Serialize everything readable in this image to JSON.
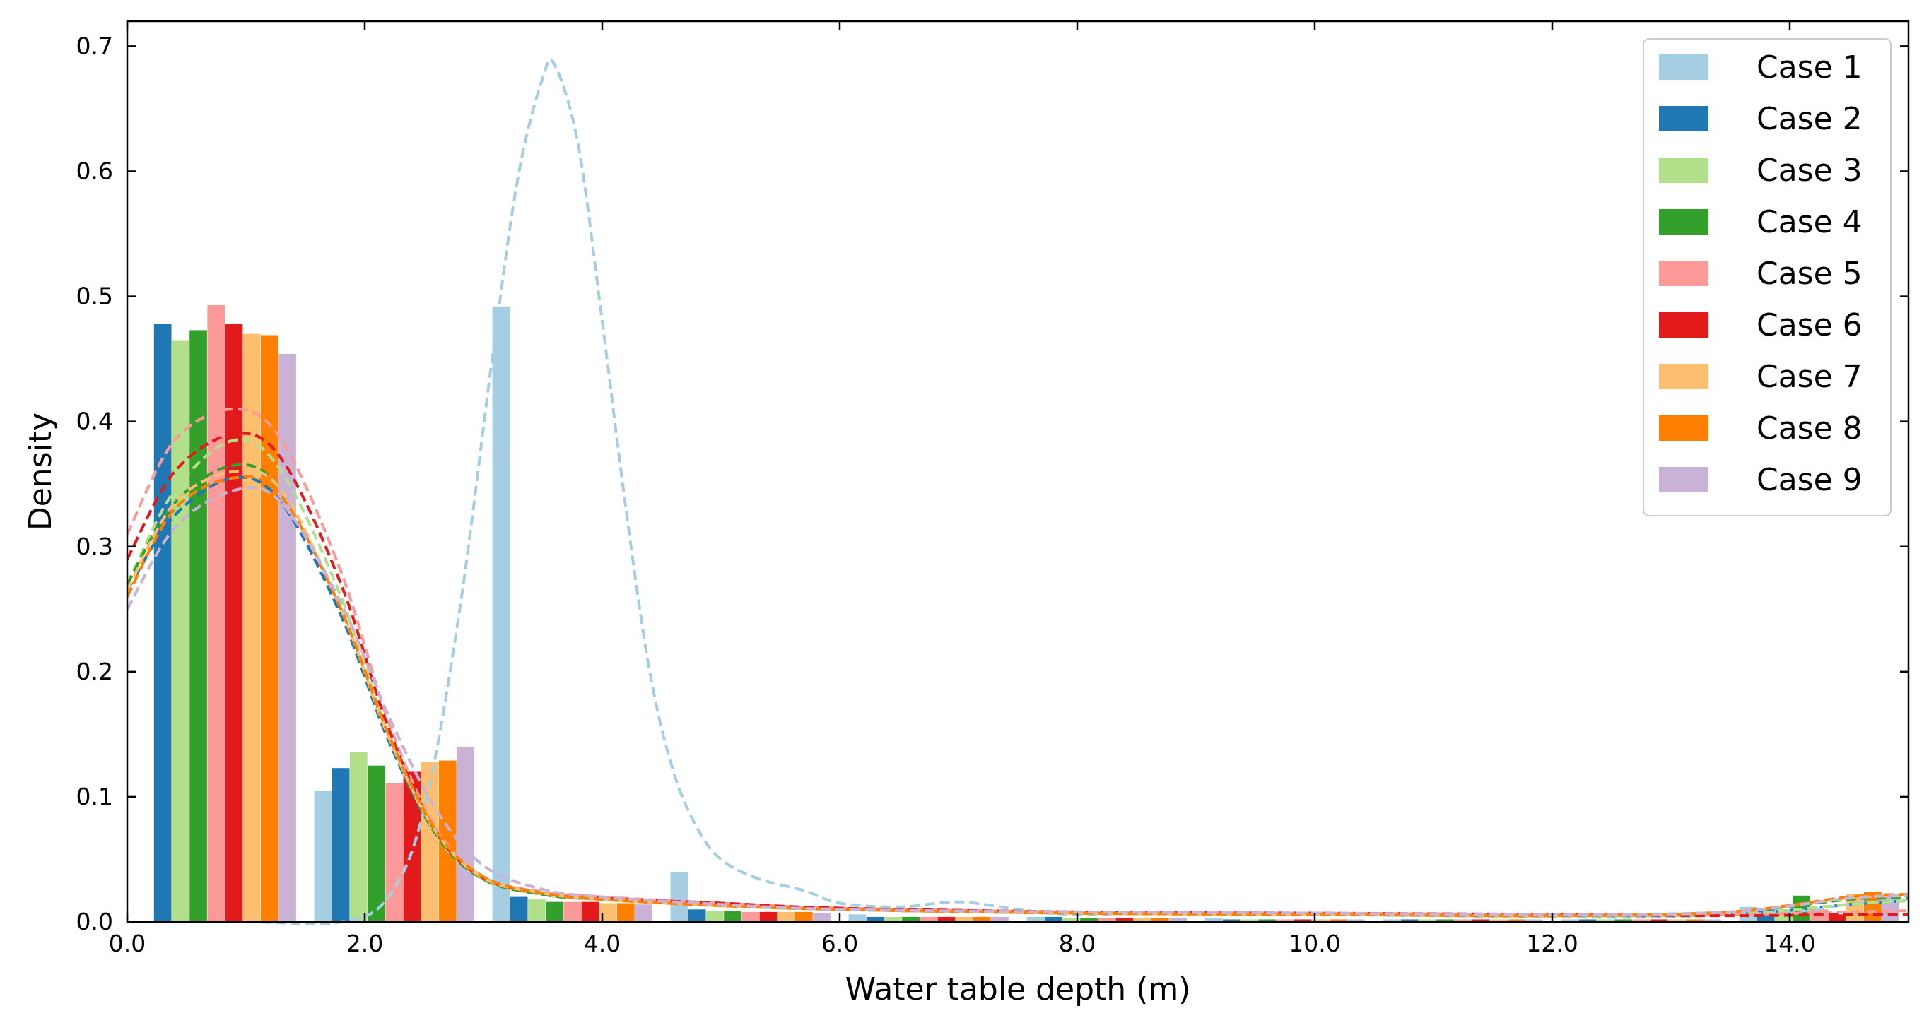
{
  "chart_data": {
    "type": "bar",
    "xlabel": "Water table depth (m)",
    "ylabel": "Density",
    "xlim": [
      0,
      15
    ],
    "ylim": [
      0,
      0.72
    ],
    "xticks": [
      0,
      2,
      4,
      6,
      8,
      10,
      12,
      14
    ],
    "xtick_labels": [
      "0.0",
      "2.0",
      "4.0",
      "6.0",
      "8.0",
      "10.0",
      "12.0",
      "14.0"
    ],
    "yticks": [
      0,
      0.1,
      0.2,
      0.3,
      0.4,
      0.5,
      0.6,
      0.7
    ],
    "ytick_labels": [
      "0.0",
      "0.1",
      "0.2",
      "0.3",
      "0.4",
      "0.5",
      "0.6",
      "0.7"
    ],
    "grid": false,
    "legend_position": "top-right",
    "bin_width": 1.5,
    "bins_start": [
      0,
      1.5,
      3.0,
      4.5,
      6.0,
      7.5,
      9.0,
      10.5,
      12.0,
      13.5
    ],
    "series": [
      {
        "name": "Case 1",
        "color": "#a6cee3",
        "values": [
          0.0,
          0.105,
          0.492,
          0.04,
          0.006,
          0.004,
          0.003,
          0.002,
          0.002,
          0.012
        ],
        "kde": [
          [
            0,
            0.0
          ],
          [
            1,
            0.0
          ],
          [
            1.8,
            0.0
          ],
          [
            2.2,
            0.02
          ],
          [
            2.5,
            0.09
          ],
          [
            2.8,
            0.25
          ],
          [
            3.1,
            0.47
          ],
          [
            3.3,
            0.6
          ],
          [
            3.5,
            0.675
          ],
          [
            3.6,
            0.685
          ],
          [
            3.8,
            0.62
          ],
          [
            4.0,
            0.48
          ],
          [
            4.2,
            0.33
          ],
          [
            4.4,
            0.2
          ],
          [
            4.6,
            0.12
          ],
          [
            4.8,
            0.075
          ],
          [
            5.0,
            0.05
          ],
          [
            5.3,
            0.035
          ],
          [
            5.7,
            0.025
          ],
          [
            6.0,
            0.015
          ],
          [
            6.5,
            0.012
          ],
          [
            7.0,
            0.016
          ],
          [
            7.5,
            0.01
          ],
          [
            8.0,
            0.006
          ],
          [
            9.0,
            0.008
          ],
          [
            10.0,
            0.006
          ],
          [
            11.0,
            0.005
          ],
          [
            12.0,
            0.004
          ],
          [
            13.0,
            0.004
          ],
          [
            14.0,
            0.008
          ],
          [
            14.5,
            0.014
          ],
          [
            15.0,
            0.018
          ]
        ]
      },
      {
        "name": "Case 2",
        "color": "#1f78b4",
        "values": [
          0.478,
          0.123,
          0.02,
          0.01,
          0.004,
          0.004,
          0.002,
          0.002,
          0.002,
          0.01
        ],
        "kde": [
          [
            0,
            0.265
          ],
          [
            0.4,
            0.325
          ],
          [
            0.9,
            0.355
          ],
          [
            1.3,
            0.335
          ],
          [
            1.8,
            0.245
          ],
          [
            2.2,
            0.145
          ],
          [
            2.6,
            0.07
          ],
          [
            3.0,
            0.035
          ],
          [
            3.5,
            0.022
          ],
          [
            4.0,
            0.018
          ],
          [
            5.0,
            0.014
          ],
          [
            6.0,
            0.01
          ],
          [
            8.0,
            0.007
          ],
          [
            10.0,
            0.006
          ],
          [
            12.0,
            0.005
          ],
          [
            13.5,
            0.006
          ],
          [
            14.5,
            0.014
          ],
          [
            15.0,
            0.017
          ]
        ]
      },
      {
        "name": "Case 3",
        "color": "#b2df8a",
        "values": [
          0.465,
          0.136,
          0.018,
          0.009,
          0.004,
          0.003,
          0.002,
          0.002,
          0.002,
          0.01
        ],
        "kde": [
          [
            0,
            0.27
          ],
          [
            0.4,
            0.345
          ],
          [
            0.9,
            0.385
          ],
          [
            1.3,
            0.36
          ],
          [
            1.8,
            0.26
          ],
          [
            2.2,
            0.15
          ],
          [
            2.6,
            0.07
          ],
          [
            3.0,
            0.034
          ],
          [
            3.5,
            0.022
          ],
          [
            4.0,
            0.018
          ],
          [
            5.0,
            0.013
          ],
          [
            6.0,
            0.01
          ],
          [
            8.0,
            0.007
          ],
          [
            10.0,
            0.006
          ],
          [
            12.0,
            0.005
          ],
          [
            13.5,
            0.006
          ],
          [
            14.5,
            0.014
          ],
          [
            15.0,
            0.017
          ]
        ]
      },
      {
        "name": "Case 4",
        "color": "#33a02c",
        "values": [
          0.473,
          0.125,
          0.016,
          0.009,
          0.004,
          0.003,
          0.002,
          0.002,
          0.002,
          0.021
        ],
        "kde": [
          [
            0,
            0.27
          ],
          [
            0.4,
            0.335
          ],
          [
            0.9,
            0.365
          ],
          [
            1.3,
            0.345
          ],
          [
            1.8,
            0.25
          ],
          [
            2.2,
            0.148
          ],
          [
            2.6,
            0.07
          ],
          [
            3.0,
            0.034
          ],
          [
            3.5,
            0.022
          ],
          [
            4.0,
            0.018
          ],
          [
            5.0,
            0.013
          ],
          [
            6.0,
            0.01
          ],
          [
            8.0,
            0.007
          ],
          [
            10.0,
            0.006
          ],
          [
            12.0,
            0.005
          ],
          [
            13.5,
            0.008
          ],
          [
            14.5,
            0.018
          ],
          [
            15.0,
            0.02
          ]
        ]
      },
      {
        "name": "Case 5",
        "color": "#fb9a99",
        "values": [
          0.493,
          0.111,
          0.016,
          0.008,
          0.004,
          0.003,
          0.002,
          0.002,
          0.002,
          0.01
        ],
        "kde": [
          [
            0,
            0.31
          ],
          [
            0.4,
            0.385
          ],
          [
            0.9,
            0.41
          ],
          [
            1.3,
            0.385
          ],
          [
            1.8,
            0.28
          ],
          [
            2.2,
            0.16
          ],
          [
            2.6,
            0.075
          ],
          [
            3.0,
            0.036
          ],
          [
            3.5,
            0.024
          ],
          [
            4.0,
            0.02
          ],
          [
            5.0,
            0.015
          ],
          [
            6.0,
            0.011
          ],
          [
            8.0,
            0.008
          ],
          [
            10.0,
            0.007
          ],
          [
            12.0,
            0.006
          ],
          [
            13.5,
            0.006
          ],
          [
            14.5,
            0.008
          ],
          [
            15.0,
            0.009
          ]
        ]
      },
      {
        "name": "Case 6",
        "color": "#e31a1c",
        "values": [
          0.478,
          0.12,
          0.016,
          0.008,
          0.004,
          0.003,
          0.002,
          0.002,
          0.002,
          0.006
        ],
        "kde": [
          [
            0,
            0.29
          ],
          [
            0.4,
            0.36
          ],
          [
            0.9,
            0.39
          ],
          [
            1.3,
            0.37
          ],
          [
            1.8,
            0.27
          ],
          [
            2.2,
            0.155
          ],
          [
            2.6,
            0.072
          ],
          [
            3.0,
            0.035
          ],
          [
            3.5,
            0.023
          ],
          [
            4.0,
            0.019
          ],
          [
            5.0,
            0.015
          ],
          [
            6.0,
            0.011
          ],
          [
            8.0,
            0.008
          ],
          [
            10.0,
            0.007
          ],
          [
            12.0,
            0.006
          ],
          [
            13.5,
            0.005
          ],
          [
            14.5,
            0.006
          ],
          [
            15.0,
            0.006
          ]
        ]
      },
      {
        "name": "Case 7",
        "color": "#fdbf6f",
        "values": [
          0.47,
          0.128,
          0.015,
          0.008,
          0.004,
          0.003,
          0.002,
          0.002,
          0.002,
          0.022
        ],
        "kde": [
          [
            0,
            0.265
          ],
          [
            0.4,
            0.335
          ],
          [
            0.9,
            0.36
          ],
          [
            1.3,
            0.345
          ],
          [
            1.8,
            0.25
          ],
          [
            2.2,
            0.148
          ],
          [
            2.6,
            0.072
          ],
          [
            3.0,
            0.035
          ],
          [
            3.5,
            0.023
          ],
          [
            4.0,
            0.018
          ],
          [
            5.0,
            0.013
          ],
          [
            6.0,
            0.01
          ],
          [
            8.0,
            0.007
          ],
          [
            10.0,
            0.006
          ],
          [
            12.0,
            0.005
          ],
          [
            13.5,
            0.008
          ],
          [
            14.5,
            0.019
          ],
          [
            15.0,
            0.021
          ]
        ]
      },
      {
        "name": "Case 8",
        "color": "#ff7f00",
        "values": [
          0.469,
          0.129,
          0.015,
          0.008,
          0.004,
          0.003,
          0.002,
          0.002,
          0.002,
          0.024
        ],
        "kde": [
          [
            0,
            0.26
          ],
          [
            0.4,
            0.33
          ],
          [
            0.9,
            0.355
          ],
          [
            1.3,
            0.34
          ],
          [
            1.8,
            0.25
          ],
          [
            2.2,
            0.15
          ],
          [
            2.6,
            0.073
          ],
          [
            3.0,
            0.036
          ],
          [
            3.5,
            0.023
          ],
          [
            4.0,
            0.018
          ],
          [
            5.0,
            0.013
          ],
          [
            6.0,
            0.01
          ],
          [
            8.0,
            0.007
          ],
          [
            10.0,
            0.006
          ],
          [
            12.0,
            0.005
          ],
          [
            13.5,
            0.008
          ],
          [
            14.5,
            0.02
          ],
          [
            15.0,
            0.022
          ]
        ]
      },
      {
        "name": "Case 9",
        "color": "#cab2d6",
        "values": [
          0.454,
          0.14,
          0.014,
          0.007,
          0.004,
          0.003,
          0.002,
          0.002,
          0.002,
          0.022
        ],
        "kde": [
          [
            0,
            0.25
          ],
          [
            0.4,
            0.315
          ],
          [
            0.9,
            0.345
          ],
          [
            1.3,
            0.335
          ],
          [
            1.8,
            0.255
          ],
          [
            2.2,
            0.165
          ],
          [
            2.6,
            0.09
          ],
          [
            3.0,
            0.045
          ],
          [
            3.5,
            0.026
          ],
          [
            4.0,
            0.02
          ],
          [
            5.0,
            0.014
          ],
          [
            6.0,
            0.01
          ],
          [
            8.0,
            0.008
          ],
          [
            10.0,
            0.007
          ],
          [
            12.0,
            0.006
          ],
          [
            13.5,
            0.008
          ],
          [
            14.5,
            0.019
          ],
          [
            15.0,
            0.021
          ]
        ]
      }
    ]
  }
}
